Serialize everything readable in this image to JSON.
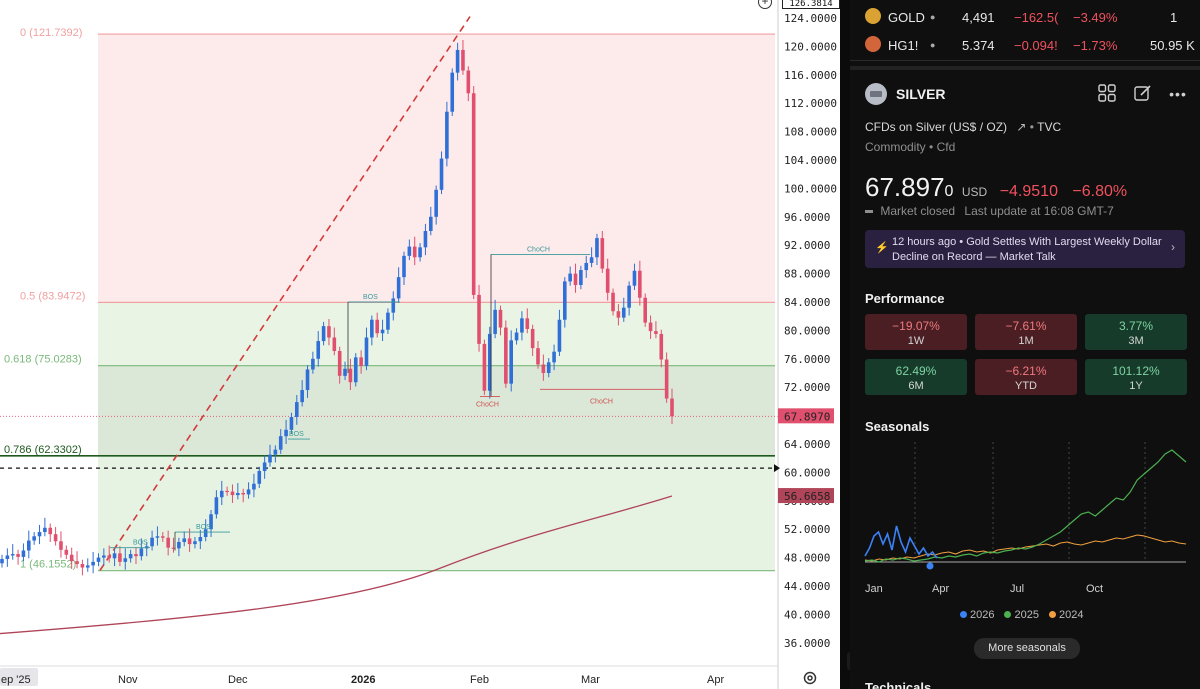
{
  "chart": {
    "price_axis": [
      "124.0000",
      "120.0000",
      "116.0000",
      "112.0000",
      "108.0000",
      "104.0000",
      "100.0000",
      "96.0000",
      "92.0000",
      "88.0000",
      "84.0000",
      "80.0000",
      "76.0000",
      "72.0000",
      "68.0000",
      "64.0000",
      "60.0000",
      "56.0000",
      "52.0000",
      "48.0000",
      "44.0000",
      "40.0000",
      "36.0000"
    ],
    "price_axis_values": [
      124,
      120,
      116,
      112,
      108,
      104,
      100,
      96,
      92,
      88,
      84,
      80,
      76,
      72,
      68,
      64,
      60,
      56,
      52,
      48,
      44,
      40,
      36
    ],
    "top_price_label": "126.3814",
    "time_axis": [
      {
        "label": "ep '25",
        "bold": false
      },
      {
        "label": "Nov",
        "bold": false
      },
      {
        "label": "Dec",
        "bold": false
      },
      {
        "label": "2026",
        "bold": true
      },
      {
        "label": "Feb",
        "bold": false
      },
      {
        "label": "Mar",
        "bold": false
      },
      {
        "label": "Apr",
        "bold": false
      }
    ],
    "fib_levels": [
      {
        "label": "0 (121.7392)",
        "price": 121.7392,
        "color": "#f0a0a0"
      },
      {
        "label": "0.5 (83.9472)",
        "price": 83.9472,
        "color": "#f0a0a0"
      },
      {
        "label": "0.618 (75.0283)",
        "price": 75.0283,
        "color": "#7ab97a"
      },
      {
        "label": "0.786 (62.3302)",
        "price": 62.3302,
        "color": "#1e5a1e"
      },
      {
        "label": "1 (46.1552)",
        "price": 46.1552,
        "color": "#7ab97a"
      }
    ],
    "annotations": [
      {
        "text": "BOS",
        "color": "#3a9a9a"
      },
      {
        "text": "BOS",
        "color": "#3a9a9a"
      },
      {
        "text": "BOS",
        "color": "#3a9a9a"
      },
      {
        "text": "BOS",
        "color": "#3a9a9a"
      },
      {
        "text": "ChoCH",
        "color": "#3a9a9a"
      },
      {
        "text": "ChoCH",
        "color": "#d05050"
      },
      {
        "text": "ChoCH",
        "color": "#d05050"
      }
    ],
    "current_price_label": "67.8970",
    "current_price": 67.897,
    "ma_price_label": "56.6658",
    "ma_price": 56.6658,
    "dashed_level": 60.6,
    "colors": {
      "up": "#2f6fd6",
      "down": "#e0506e",
      "ma": "#b04458",
      "trend": "#d33a3a"
    }
  },
  "watchlist": [
    {
      "symbol": "GOLD",
      "last": "4,491",
      "change": "−162.5(",
      "change_pct": "−3.49%",
      "extra": "1",
      "icon_color": "#d9a233"
    },
    {
      "symbol": "HG1!",
      "last": "5.374",
      "change": "−0.094!",
      "change_pct": "−1.73%",
      "extra": "50.95 K",
      "icon_color": "#d2663a"
    }
  ],
  "symbol": {
    "name": "SILVER",
    "description": "CFDs on Silver (US$ / OZ)",
    "source": "TVC",
    "category": "Commodity",
    "subcategory": "Cfd",
    "price": "67.897",
    "price_small": "0",
    "currency": "USD",
    "change": "−4.9510",
    "change_pct": "−6.80%",
    "market_status": "Market closed",
    "last_update": "Last update at 16:08 GMT-7"
  },
  "news": {
    "age": "12 hours ago",
    "headline": "Gold Settles With Largest Weekly Dollar Decline on Record — Market Talk"
  },
  "performance": {
    "title": "Performance",
    "cells": [
      {
        "value": "−19.07%",
        "period": "1W",
        "sign": "neg"
      },
      {
        "value": "−7.61%",
        "period": "1M",
        "sign": "neg"
      },
      {
        "value": "3.77%",
        "period": "3M",
        "sign": "pos"
      },
      {
        "value": "62.49%",
        "period": "6M",
        "sign": "pos"
      },
      {
        "value": "−6.21%",
        "period": "YTD",
        "sign": "neg"
      },
      {
        "value": "101.12%",
        "period": "1Y",
        "sign": "pos"
      }
    ]
  },
  "seasonals": {
    "title": "Seasonals",
    "months": [
      "Jan",
      "Apr",
      "Jul",
      "Oct"
    ],
    "legend": [
      {
        "year": "2026",
        "color": "#3b82f6"
      },
      {
        "year": "2025",
        "color": "#4caf50"
      },
      {
        "year": "2024",
        "color": "#f0a040"
      }
    ],
    "more_label": "More seasonals"
  },
  "technicals_label": "Technicals"
}
